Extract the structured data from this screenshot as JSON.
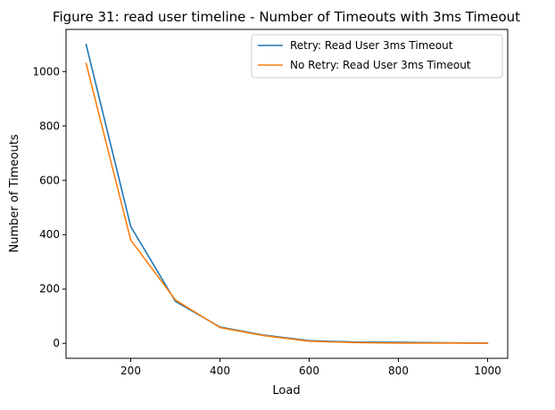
{
  "chart_data": {
    "type": "line",
    "title": "Figure 31: read user timeline - Number of Timeouts with 3ms Timeout",
    "xlabel": "Load",
    "ylabel": "Number of Timeouts",
    "x": [
      100,
      200,
      300,
      400,
      500,
      600,
      700,
      800,
      900,
      1000
    ],
    "xlim": [
      55,
      1045
    ],
    "ylim": [
      -55,
      1155
    ],
    "xticks": [
      200,
      400,
      600,
      800,
      1000
    ],
    "yticks": [
      0,
      200,
      400,
      600,
      800,
      1000
    ],
    "grid": false,
    "legend_position": "top-right",
    "series": [
      {
        "name": "Retry: Read User 3ms Timeout",
        "color": "#1f77b4",
        "values": [
          1100,
          430,
          155,
          60,
          30,
          10,
          5,
          4,
          2,
          1
        ]
      },
      {
        "name": "No Retry: Read User 3ms Timeout",
        "color": "#ff7f0e",
        "values": [
          1030,
          380,
          160,
          58,
          28,
          8,
          3,
          1,
          1,
          0
        ]
      }
    ]
  }
}
